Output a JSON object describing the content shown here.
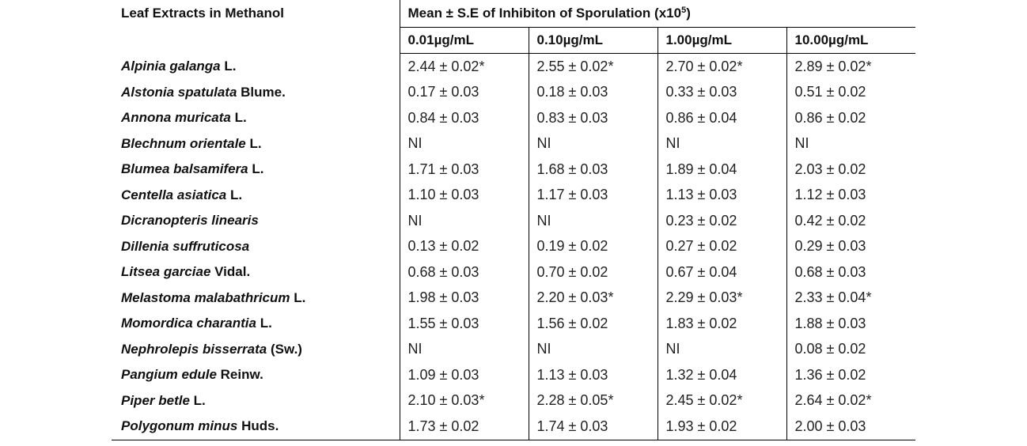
{
  "table": {
    "header": {
      "row_label": "Leaf Extracts in Methanol",
      "group_label": "Mean ± S.E of Inhibiton of Sporulation (x10",
      "group_exp": "5",
      "group_close": ")",
      "concentrations": [
        "0.01µg/mL",
        "0.10µg/mL",
        "1.00µg/mL",
        "10.00µg/mL"
      ]
    },
    "rows": [
      {
        "species": "Alpinia galanga",
        "authority": " L.",
        "values": [
          "2.44 ± 0.02*",
          "2.55 ± 0.02*",
          "2.70 ± 0.02*",
          "2.89 ± 0.02*"
        ]
      },
      {
        "species": "Alstonia spatulata",
        "authority": " Blume.",
        "values": [
          "0.17 ± 0.03",
          "0.18 ± 0.03",
          "0.33 ± 0.03",
          "0.51 ± 0.02"
        ]
      },
      {
        "species": "Annona muricata",
        "authority": " L.",
        "values": [
          "0.84 ± 0.03",
          "0.83 ± 0.03",
          "0.86 ± 0.04",
          "0.86 ± 0.02"
        ]
      },
      {
        "species": "Blechnum orientale",
        "authority": " L.",
        "values": [
          "NI",
          "NI",
          "NI",
          "NI"
        ]
      },
      {
        "species": "Blumea balsamifera",
        "authority": " L.",
        "values": [
          "1.71 ± 0.03",
          "1.68 ± 0.03",
          "1.89 ± 0.04",
          "2.03 ± 0.02"
        ]
      },
      {
        "species": "Centella asiatica",
        "authority": " L.",
        "values": [
          "1.10 ± 0.03",
          "1.17 ± 0.03",
          "1.13 ± 0.03",
          "1.12 ± 0.03"
        ]
      },
      {
        "species": "Dicranopteris linearis",
        "authority": "",
        "values": [
          "NI",
          "NI",
          "0.23 ± 0.02",
          "0.42 ± 0.02"
        ]
      },
      {
        "species": "Dillenia suffruticosa",
        "authority": "",
        "values": [
          "0.13 ± 0.02",
          "0.19 ± 0.02",
          "0.27 ± 0.02",
          "0.29 ± 0.03"
        ]
      },
      {
        "species": "Litsea garciae",
        "authority": " Vidal.",
        "values": [
          "0.68 ± 0.03",
          "0.70 ± 0.02",
          "0.67 ± 0.04",
          "0.68 ± 0.03"
        ]
      },
      {
        "species": "Melastoma malabathricum",
        "authority": " L.",
        "values": [
          "1.98 ± 0.03",
          "2.20 ± 0.03*",
          "2.29 ± 0.03*",
          "2.33 ± 0.04*"
        ]
      },
      {
        "species": "Momordica charantia",
        "authority": " L.",
        "values": [
          "1.55 ± 0.03",
          "1.56 ± 0.02",
          "1.83 ± 0.02",
          "1.88 ± 0.03"
        ]
      },
      {
        "species": "Nephrolepis bisserrata",
        "authority": " (Sw.)",
        "values": [
          "NI",
          "NI",
          "NI",
          "0.08 ± 0.02"
        ]
      },
      {
        "species": "Pangium edule",
        "authority": " Reinw.",
        "values": [
          "1.09 ± 0.03",
          "1.13 ± 0.03",
          "1.32 ± 0.04",
          "1.36 ± 0.02"
        ]
      },
      {
        "species": "Piper betle",
        "authority": " L.",
        "values": [
          "2.10 ± 0.03*",
          "2.28 ± 0.05*",
          "2.45 ± 0.02*",
          "2.64 ± 0.02*"
        ]
      },
      {
        "species": "Polygonum minus",
        "authority": " Huds.",
        "values": [
          "1.73 ± 0.02",
          "1.74 ± 0.03",
          "1.93 ± 0.02",
          "2.00 ± 0.03"
        ]
      }
    ]
  }
}
